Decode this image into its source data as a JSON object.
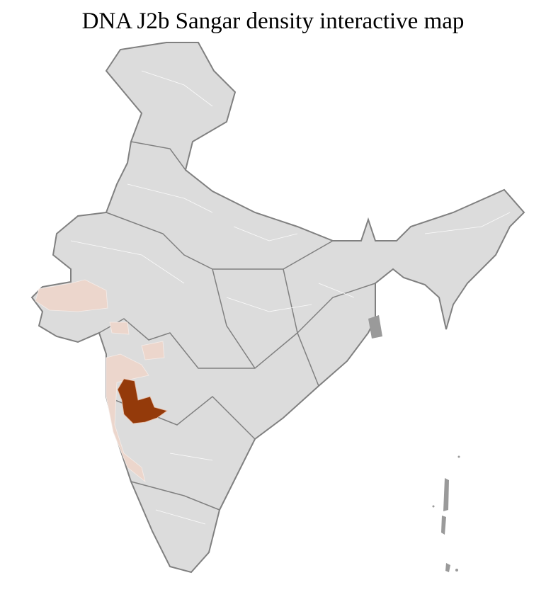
{
  "title": "DNA J2b Sangar density interactive map",
  "colors": {
    "land": "#dcdcdc",
    "border": "#808080",
    "district_lines": "#ffffff",
    "low_density": "#ecd6cc",
    "high_density": "#943a0a"
  }
}
